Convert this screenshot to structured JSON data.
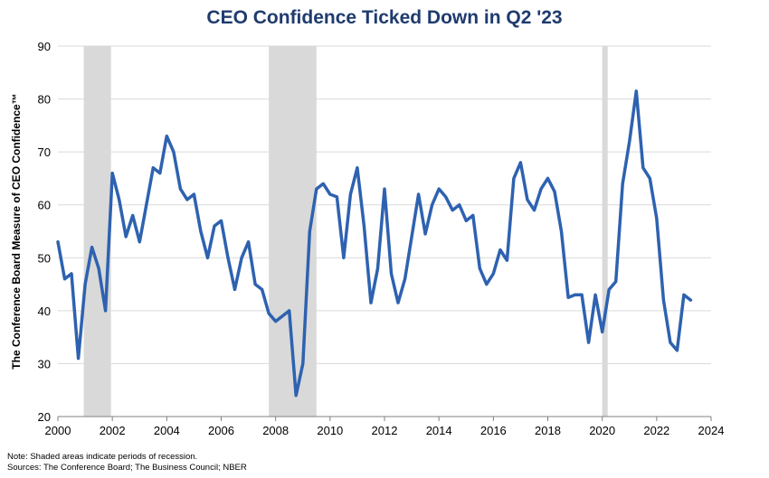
{
  "chart_data": {
    "type": "line",
    "title": "CEO Confidence Ticked Down in Q2 '23",
    "ylabel": "The Conference Board Measure of CEO Confidence™",
    "xlabel": "",
    "xlim": [
      2000,
      2024
    ],
    "ylim": [
      20,
      90
    ],
    "x_ticks": [
      2000,
      2002,
      2004,
      2006,
      2008,
      2010,
      2012,
      2014,
      2016,
      2018,
      2020,
      2022,
      2024
    ],
    "y_ticks": [
      20,
      30,
      40,
      50,
      60,
      70,
      80,
      90
    ],
    "grid": true,
    "line_color": "#2e62b0",
    "recession_color": "#d9d9d9",
    "recessions": [
      [
        2000.95,
        2001.95
      ],
      [
        2007.75,
        2009.5
      ],
      [
        2020.0,
        2020.2
      ]
    ],
    "series": [
      {
        "x": [
          2000.0,
          2000.25,
          2000.5,
          2000.75,
          2001.0,
          2001.25,
          2001.5,
          2001.75,
          2002.0,
          2002.25,
          2002.5,
          2002.75,
          2003.0,
          2003.25,
          2003.5,
          2003.75,
          2004.0,
          2004.25,
          2004.5,
          2004.75,
          2005.0,
          2005.25,
          2005.5,
          2005.75,
          2006.0,
          2006.25,
          2006.5,
          2006.75,
          2007.0,
          2007.25,
          2007.5,
          2007.75,
          2008.0,
          2008.25,
          2008.5,
          2008.75,
          2009.0,
          2009.25,
          2009.5,
          2009.75,
          2010.0,
          2010.25,
          2010.5,
          2010.75,
          2011.0,
          2011.25,
          2011.5,
          2011.75,
          2012.0,
          2012.25,
          2012.5,
          2012.75,
          2013.0,
          2013.25,
          2013.5,
          2013.75,
          2014.0,
          2014.25,
          2014.5,
          2014.75,
          2015.0,
          2015.25,
          2015.5,
          2015.75,
          2016.0,
          2016.25,
          2016.5,
          2016.75,
          2017.0,
          2017.25,
          2017.5,
          2017.75,
          2018.0,
          2018.25,
          2018.5,
          2018.75,
          2019.0,
          2019.25,
          2019.5,
          2019.75,
          2020.0,
          2020.25,
          2020.5,
          2020.75,
          2021.0,
          2021.25,
          2021.5,
          2021.75,
          2022.0,
          2022.25,
          2022.5,
          2022.75,
          2023.0,
          2023.25
        ],
        "y": [
          53,
          46,
          47,
          31,
          45,
          52,
          48,
          40,
          66,
          61,
          54,
          58,
          53,
          60,
          67,
          66,
          73,
          70,
          63,
          61,
          62,
          55,
          50,
          56,
          57,
          50,
          44,
          50,
          53,
          45,
          44,
          39.5,
          38,
          39,
          40,
          24,
          30,
          55,
          63,
          64,
          62,
          61.5,
          50,
          62,
          67,
          56,
          41.5,
          48,
          63,
          47,
          41.5,
          46,
          54,
          62,
          54.5,
          60,
          63,
          61.5,
          59,
          60,
          57,
          58,
          48,
          45,
          47,
          51.5,
          49.5,
          65,
          68,
          61,
          59,
          63,
          65,
          62.5,
          55,
          42.5,
          43,
          43,
          34,
          43,
          36,
          44,
          45.5,
          64,
          72,
          81.5,
          67,
          65,
          57.5,
          42,
          34,
          32.5,
          43,
          42
        ]
      }
    ]
  },
  "notes": {
    "line1": "Note: Shaded areas indicate periods of  recession.",
    "line2": "Sources: The  Conference Board; The Business Council; NBER"
  }
}
